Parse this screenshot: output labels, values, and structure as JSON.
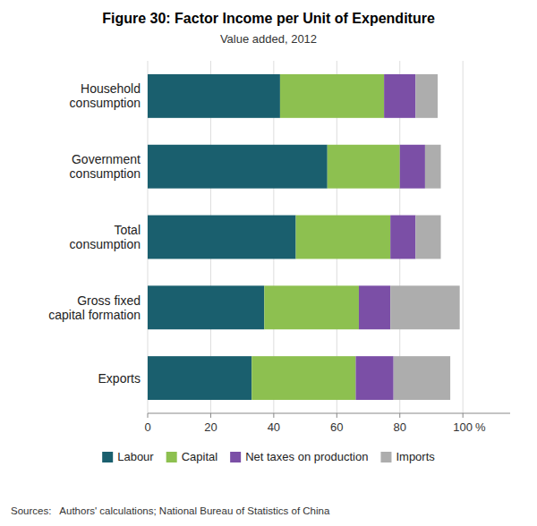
{
  "chart_data": {
    "type": "bar",
    "orientation": "horizontal",
    "stacked": true,
    "title": "Figure 30: Factor Income per Unit of Expenditure",
    "subtitle": "Value added, 2012",
    "categories": [
      "Household\nconsumption",
      "Government\nconsumption",
      "Total\nconsumption",
      "Gross fixed\ncapital formation",
      "Exports"
    ],
    "series": [
      {
        "name": "Labour",
        "color": "#1a5f6e",
        "values": [
          42,
          57,
          47,
          37,
          33
        ]
      },
      {
        "name": "Capital",
        "color": "#8dc050",
        "values": [
          33,
          23,
          30,
          30,
          33
        ]
      },
      {
        "name": "Net taxes on production",
        "color": "#7b4fa6",
        "values": [
          10,
          8,
          8,
          10,
          12
        ]
      },
      {
        "name": "Imports",
        "color": "#adadad",
        "values": [
          7,
          5,
          8,
          22,
          18
        ]
      }
    ],
    "xlim": [
      0,
      115
    ],
    "xticks": [
      0,
      20,
      40,
      60,
      80,
      100
    ],
    "xlabel": "%",
    "source": "Sources:   Authors' calculations; National Bureau of Statistics of China",
    "grid": true,
    "legend": "bottom"
  }
}
